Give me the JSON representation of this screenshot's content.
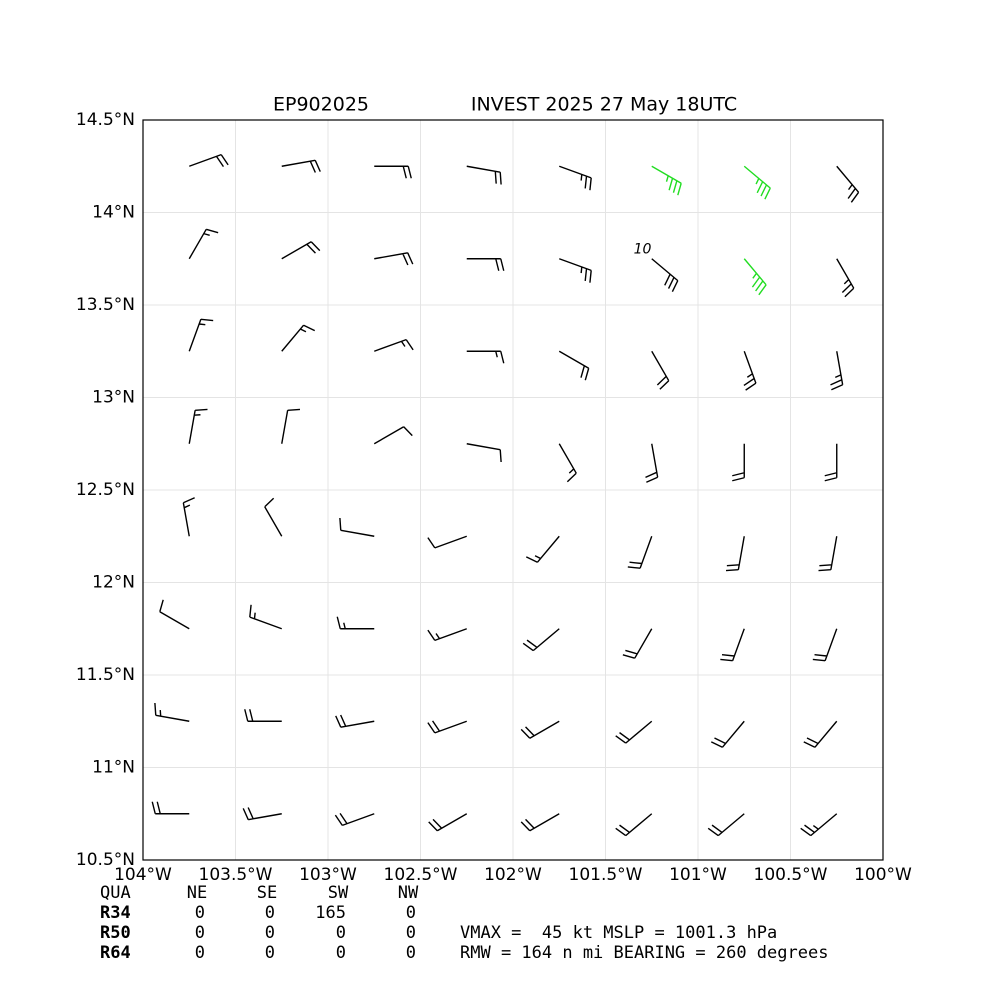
{
  "chart_data": {
    "type": "wind-barb",
    "title_left": "EP902025",
    "title_right": "INVEST 2025 27 May 18UTC",
    "xlim": [
      -104,
      -100
    ],
    "ylim": [
      10.5,
      14.5
    ],
    "xticks": [
      {
        "value": -104,
        "label": "104°W"
      },
      {
        "value": -103.5,
        "label": "103.5°W"
      },
      {
        "value": -103,
        "label": "103°W"
      },
      {
        "value": -102.5,
        "label": "102.5°W"
      },
      {
        "value": -102,
        "label": "102°W"
      },
      {
        "value": -101.5,
        "label": "101.5°W"
      },
      {
        "value": -101,
        "label": "101°W"
      },
      {
        "value": -100.5,
        "label": "100.5°W"
      },
      {
        "value": -100,
        "label": "100°W"
      }
    ],
    "yticks": [
      {
        "value": 10.5,
        "label": "10.5°N"
      },
      {
        "value": 11,
        "label": "11°N"
      },
      {
        "value": 11.5,
        "label": "11.5°N"
      },
      {
        "value": 12,
        "label": "12°N"
      },
      {
        "value": 12.5,
        "label": "12.5°N"
      },
      {
        "value": 13,
        "label": "13°N"
      },
      {
        "value": 13.5,
        "label": "13.5°N"
      },
      {
        "value": 14,
        "label": "14°N"
      },
      {
        "value": 14.5,
        "label": "14.5°N"
      }
    ],
    "grid": true,
    "wind": {
      "lon": [
        -103.75,
        -103.25,
        -102.75,
        -102.25,
        -101.75,
        -101.25,
        -100.75,
        -100.25
      ],
      "lat": [
        10.75,
        11.25,
        11.75,
        12.25,
        12.75,
        13.25,
        13.75,
        14.25
      ],
      "direction": [
        [
          270,
          260,
          250,
          240,
          240,
          230,
          230,
          230
        ],
        [
          280,
          270,
          260,
          250,
          240,
          230,
          220,
          220
        ],
        [
          300,
          290,
          270,
          250,
          230,
          210,
          200,
          200
        ],
        [
          350,
          330,
          280,
          250,
          220,
          200,
          190,
          190
        ],
        [
          10,
          10,
          60,
          100,
          150,
          170,
          180,
          180
        ],
        [
          20,
          40,
          70,
          90,
          120,
          150,
          160,
          170
        ],
        [
          30,
          60,
          80,
          90,
          110,
          130,
          140,
          150
        ],
        [
          70,
          80,
          90,
          100,
          110,
          120,
          130,
          140
        ]
      ],
      "speed": [
        [
          20,
          20,
          20,
          20,
          20,
          20,
          20,
          25
        ],
        [
          15,
          20,
          20,
          20,
          20,
          20,
          20,
          20
        ],
        [
          10,
          15,
          15,
          15,
          20,
          20,
          20,
          20
        ],
        [
          15,
          10,
          10,
          10,
          15,
          20,
          20,
          20
        ],
        [
          15,
          10,
          10,
          10,
          15,
          20,
          20,
          20
        ],
        [
          15,
          15,
          15,
          15,
          20,
          20,
          25,
          25
        ],
        [
          15,
          20,
          20,
          20,
          25,
          30,
          35,
          25
        ],
        [
          20,
          20,
          20,
          20,
          25,
          35,
          35,
          25
        ]
      ],
      "color": "#000000",
      "highlight": {
        "min_speed": 34,
        "color": "#22dd22"
      }
    },
    "contour": {
      "label": "10",
      "lon": -101.3,
      "lat": 13.8
    }
  },
  "table": {
    "header": [
      "QUA",
      "NE",
      "SE",
      "SW",
      "NW"
    ],
    "rows": [
      [
        "R34",
        "0",
        "0",
        "165",
        "0"
      ],
      [
        "R50",
        "0",
        "0",
        "0",
        "0"
      ],
      [
        "R64",
        "0",
        "0",
        "0",
        "0"
      ]
    ]
  },
  "info": [
    "VMAX =  45 kt MSLP = 1001.3 hPa",
    "RMW = 164 n mi BEARING = 260 degrees"
  ]
}
